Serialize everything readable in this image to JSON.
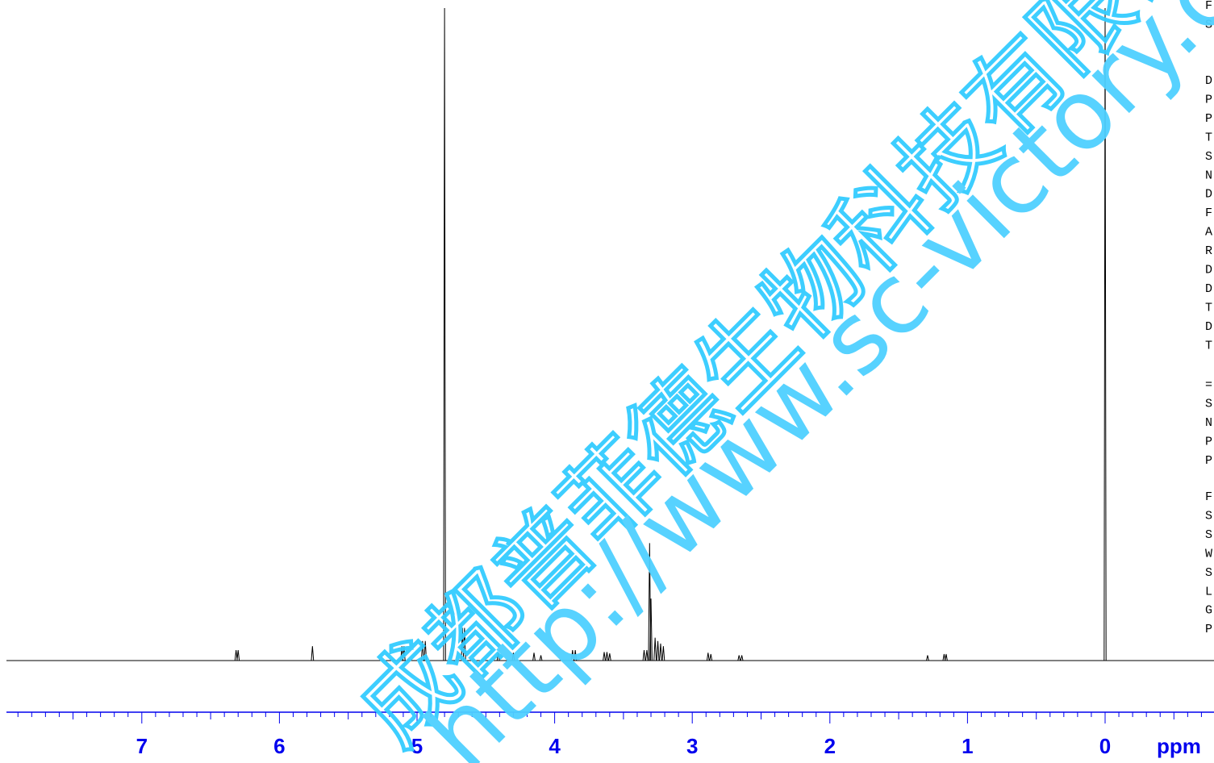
{
  "chart_data": {
    "type": "line",
    "title": "",
    "xlabel": "ppm",
    "ylabel": "",
    "xlim": [
      8.0,
      -0.8
    ],
    "x_reversed": true,
    "tick_labels": [
      "7",
      "6",
      "5",
      "4",
      "3",
      "2",
      "1",
      "0"
    ],
    "major_ticks": [
      7,
      6,
      5,
      4,
      3,
      2,
      1,
      0
    ],
    "minor_tick_step": 0.1,
    "grid": false,
    "legend": "none",
    "axis_color": "#0000ee",
    "trace_color": "#000000",
    "peaks": [
      {
        "x": 6.315,
        "height": 0.016
      },
      {
        "x": 6.3,
        "height": 0.016
      },
      {
        "x": 5.76,
        "height": 0.022
      },
      {
        "x": 5.11,
        "height": 0.022
      },
      {
        "x": 5.095,
        "height": 0.022
      },
      {
        "x": 4.96,
        "height": 0.03
      },
      {
        "x": 4.94,
        "height": 0.03
      },
      {
        "x": 4.8,
        "height": 1.0
      },
      {
        "x": 4.67,
        "height": 0.05
      },
      {
        "x": 4.655,
        "height": 0.05
      },
      {
        "x": 4.41,
        "height": 0.012
      },
      {
        "x": 4.3,
        "height": 0.012
      },
      {
        "x": 4.15,
        "height": 0.012
      },
      {
        "x": 4.1,
        "height": 0.008
      },
      {
        "x": 3.87,
        "height": 0.016
      },
      {
        "x": 3.85,
        "height": 0.016
      },
      {
        "x": 3.64,
        "height": 0.013
      },
      {
        "x": 3.62,
        "height": 0.013
      },
      {
        "x": 3.6,
        "height": 0.011
      },
      {
        "x": 3.35,
        "height": 0.016
      },
      {
        "x": 3.33,
        "height": 0.016
      },
      {
        "x": 3.31,
        "height": 0.18
      },
      {
        "x": 3.3,
        "height": 0.095
      },
      {
        "x": 3.27,
        "height": 0.035
      },
      {
        "x": 3.25,
        "height": 0.03
      },
      {
        "x": 3.23,
        "height": 0.026
      },
      {
        "x": 3.21,
        "height": 0.022
      },
      {
        "x": 2.885,
        "height": 0.012
      },
      {
        "x": 2.865,
        "height": 0.01
      },
      {
        "x": 2.66,
        "height": 0.008
      },
      {
        "x": 2.64,
        "height": 0.008
      },
      {
        "x": 1.29,
        "height": 0.008
      },
      {
        "x": 1.17,
        "height": 0.01
      },
      {
        "x": 1.155,
        "height": 0.01
      },
      {
        "x": 0.0,
        "height": 1.0
      }
    ]
  },
  "params": {
    "group1": [
      "F",
      "S"
    ],
    "group2": [
      "D",
      "P",
      "P",
      "T",
      "S",
      "N",
      "D",
      "F",
      "A",
      "R",
      "D",
      "D",
      "T",
      "D",
      "T"
    ],
    "group3": [
      "=",
      "S",
      "N",
      "P",
      "P"
    ],
    "group4": [
      "F",
      "S",
      "S",
      "W",
      "S",
      "L",
      "G",
      "P"
    ]
  },
  "watermark": {
    "chinese": "成都普菲德生物科技有限公司",
    "url": "http://www.sc-victory.com"
  }
}
